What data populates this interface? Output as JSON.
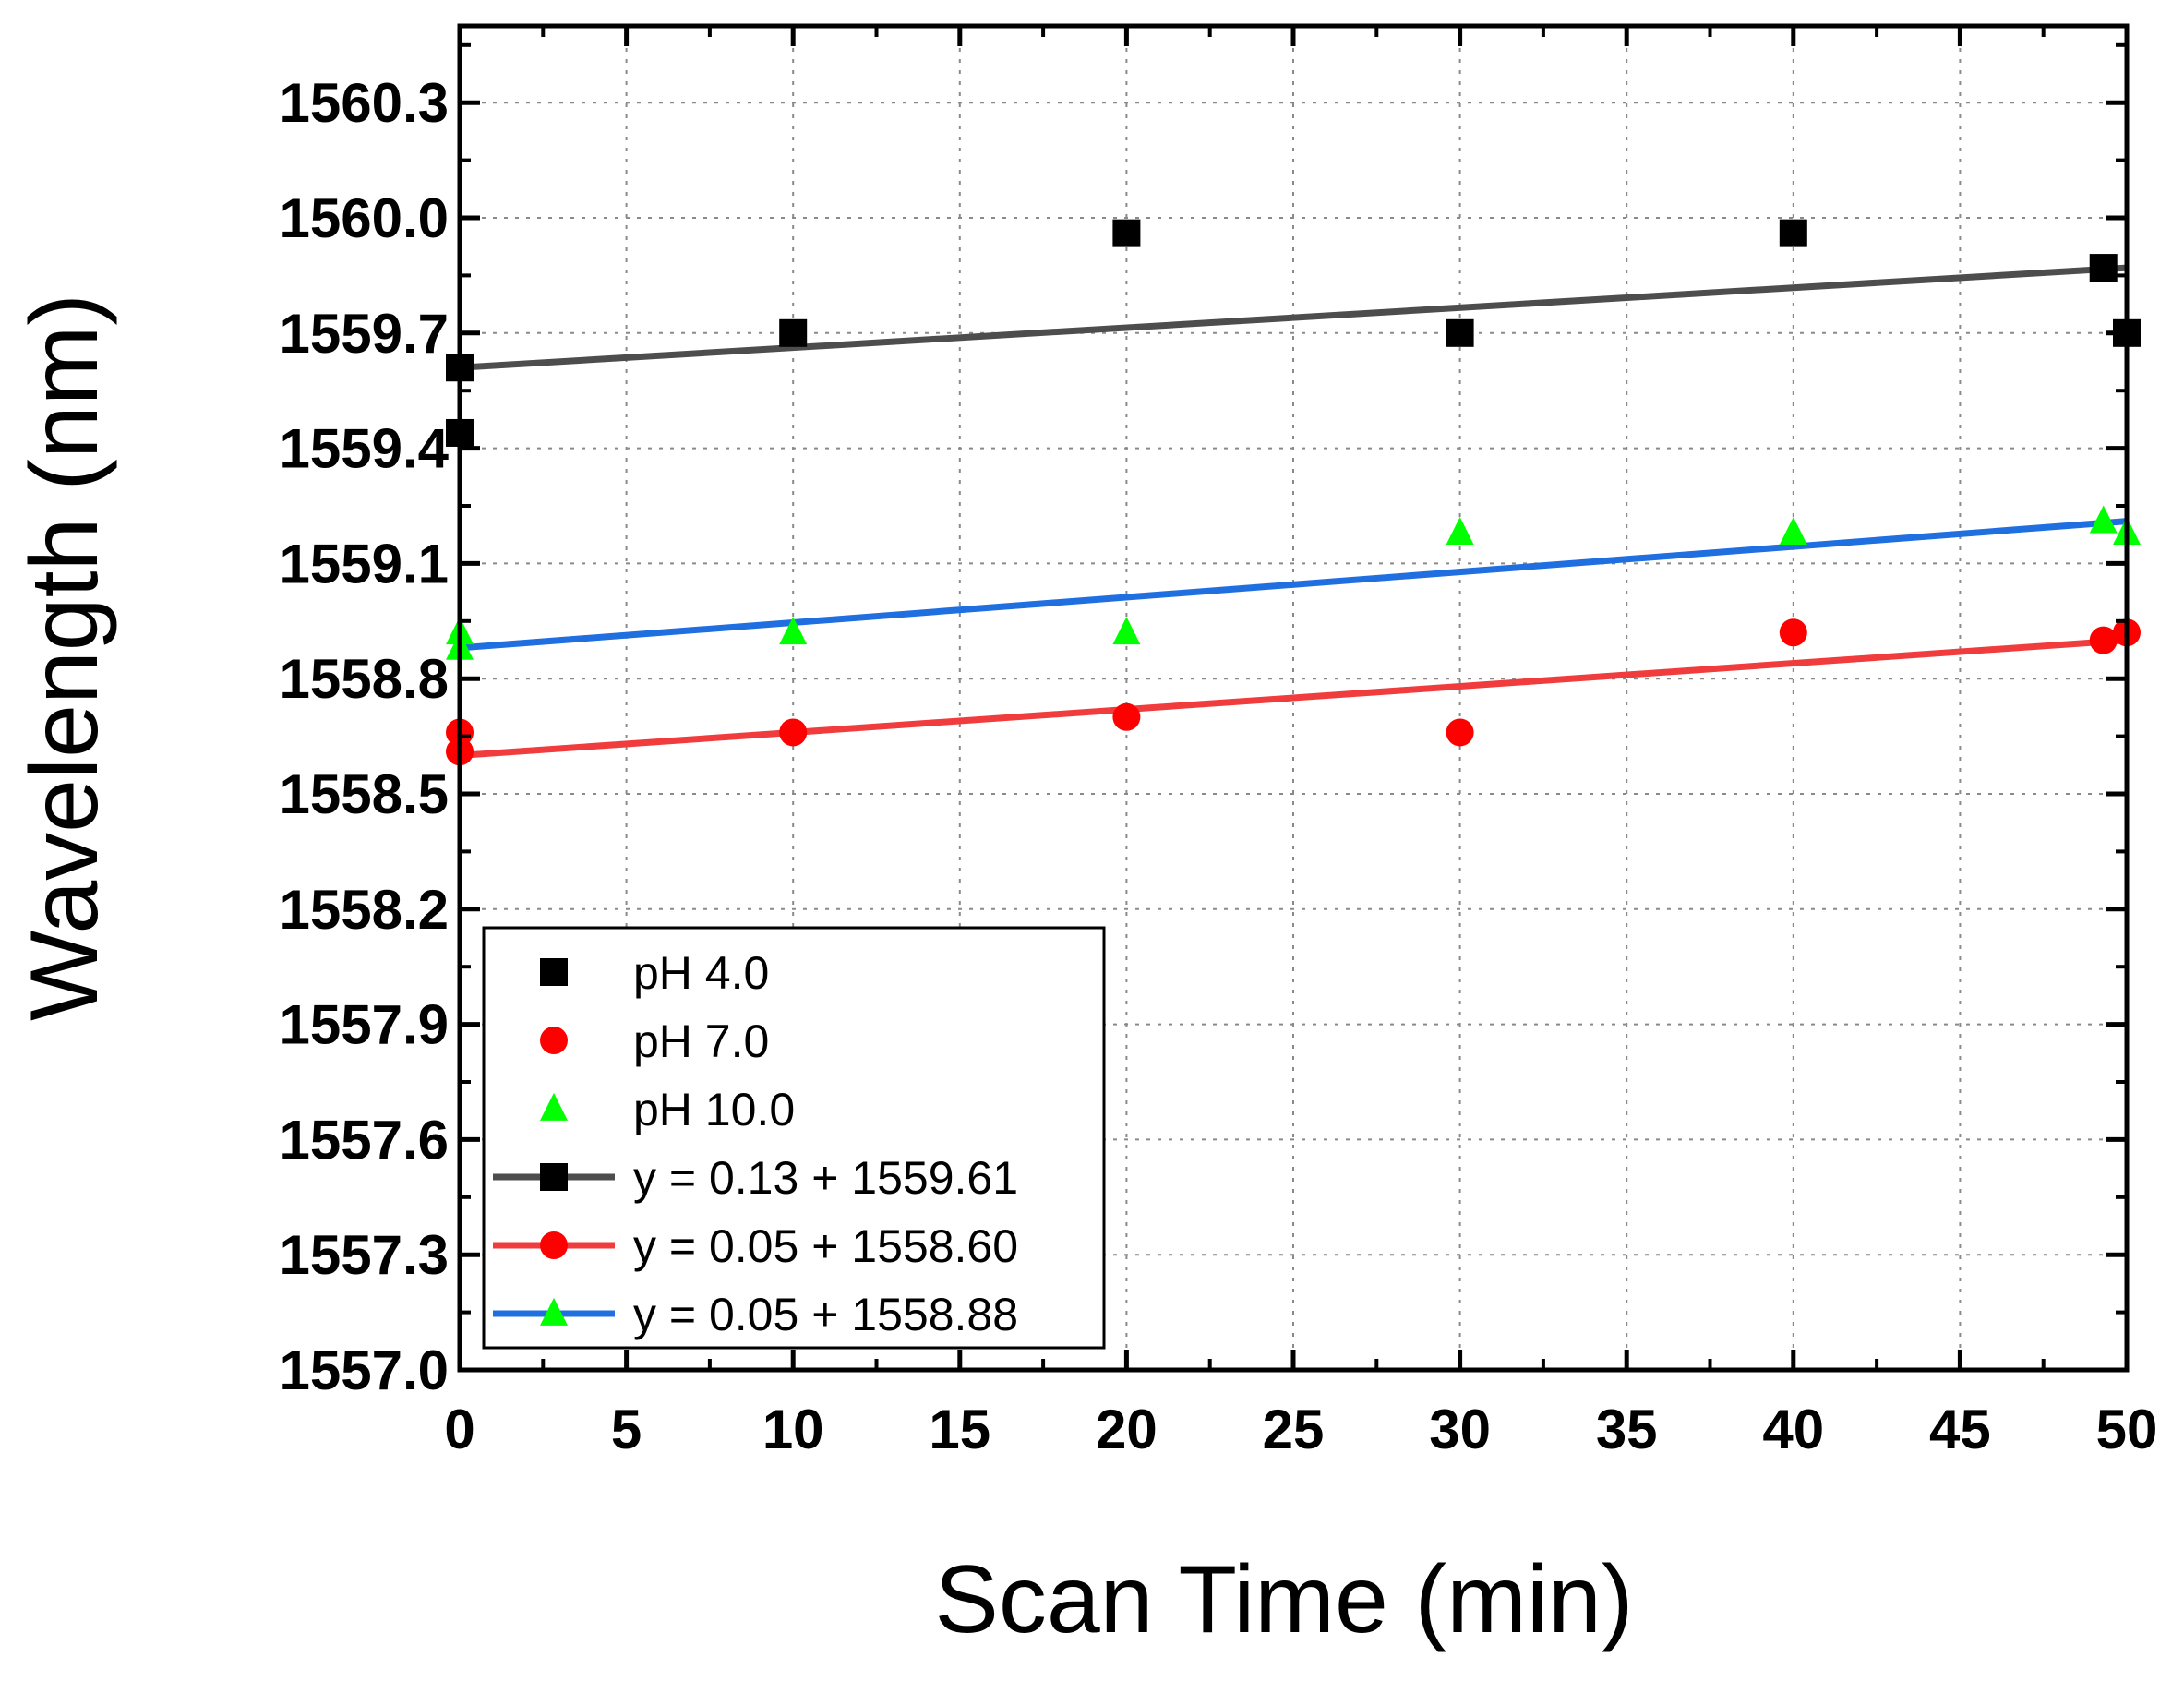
{
  "chart_data": {
    "type": "scatter",
    "xlabel": "Scan Time (min)",
    "ylabel": "Wavelength (nm)",
    "xlim": [
      0,
      50
    ],
    "ylim": [
      1557.0,
      1560.5
    ],
    "x_ticks": [
      0,
      5,
      10,
      15,
      20,
      25,
      30,
      35,
      40,
      45,
      50
    ],
    "y_ticks": [
      1557.0,
      1557.3,
      1557.6,
      1557.9,
      1558.2,
      1558.5,
      1558.8,
      1559.1,
      1559.4,
      1559.7,
      1560.0,
      1560.3
    ],
    "x_tick_labels": [
      "0",
      "5",
      "10",
      "15",
      "20",
      "25",
      "30",
      "35",
      "40",
      "45",
      "50"
    ],
    "y_tick_labels": [
      "1557.0",
      "1557.3",
      "1557.6",
      "1557.9",
      "1558.2",
      "1558.5",
      "1558.8",
      "1559.1",
      "1559.4",
      "1559.7",
      "1560.0",
      "1560.3"
    ],
    "grid": true,
    "legend_position": "bottom-left",
    "series": [
      {
        "name": "pH 4.0",
        "marker": "square",
        "color": "#000000",
        "points": [
          [
            0,
            1559.44
          ],
          [
            0,
            1559.61
          ],
          [
            10,
            1559.7
          ],
          [
            20,
            1559.96
          ],
          [
            30,
            1559.7
          ],
          [
            40,
            1559.96
          ],
          [
            49.3,
            1559.87
          ],
          [
            50,
            1559.7
          ]
        ]
      },
      {
        "name": "pH 7.0",
        "marker": "circle",
        "color": "#ff0000",
        "points": [
          [
            0,
            1558.61
          ],
          [
            0,
            1558.66
          ],
          [
            10,
            1558.66
          ],
          [
            20,
            1558.7
          ],
          [
            30,
            1558.66
          ],
          [
            40,
            1558.92
          ],
          [
            49.3,
            1558.9
          ],
          [
            50,
            1558.92
          ]
        ]
      },
      {
        "name": "pH 10.0",
        "marker": "triangle",
        "color": "#00ff00",
        "points": [
          [
            0,
            1558.88
          ],
          [
            0,
            1558.92
          ],
          [
            10,
            1558.92
          ],
          [
            20,
            1558.92
          ],
          [
            30,
            1559.18
          ],
          [
            40,
            1559.18
          ],
          [
            49.3,
            1559.21
          ],
          [
            50,
            1559.18
          ]
        ]
      }
    ],
    "fits": [
      {
        "label": "y = 0.13 + 1559.61",
        "line_color": "#4d4d4d",
        "marker": "square",
        "marker_color": "#000000",
        "y_start": 1559.61,
        "y_end": 1559.87
      },
      {
        "label": "y = 0.05 + 1558.60",
        "line_color": "#f03c3c",
        "marker": "circle",
        "marker_color": "#ff0000",
        "y_start": 1558.6,
        "y_end": 1558.9
      },
      {
        "label": "y = 0.05 + 1558.88",
        "line_color": "#1f6fe0",
        "marker": "triangle",
        "marker_color": "#00ff00",
        "y_start": 1558.88,
        "y_end": 1559.21
      }
    ]
  }
}
